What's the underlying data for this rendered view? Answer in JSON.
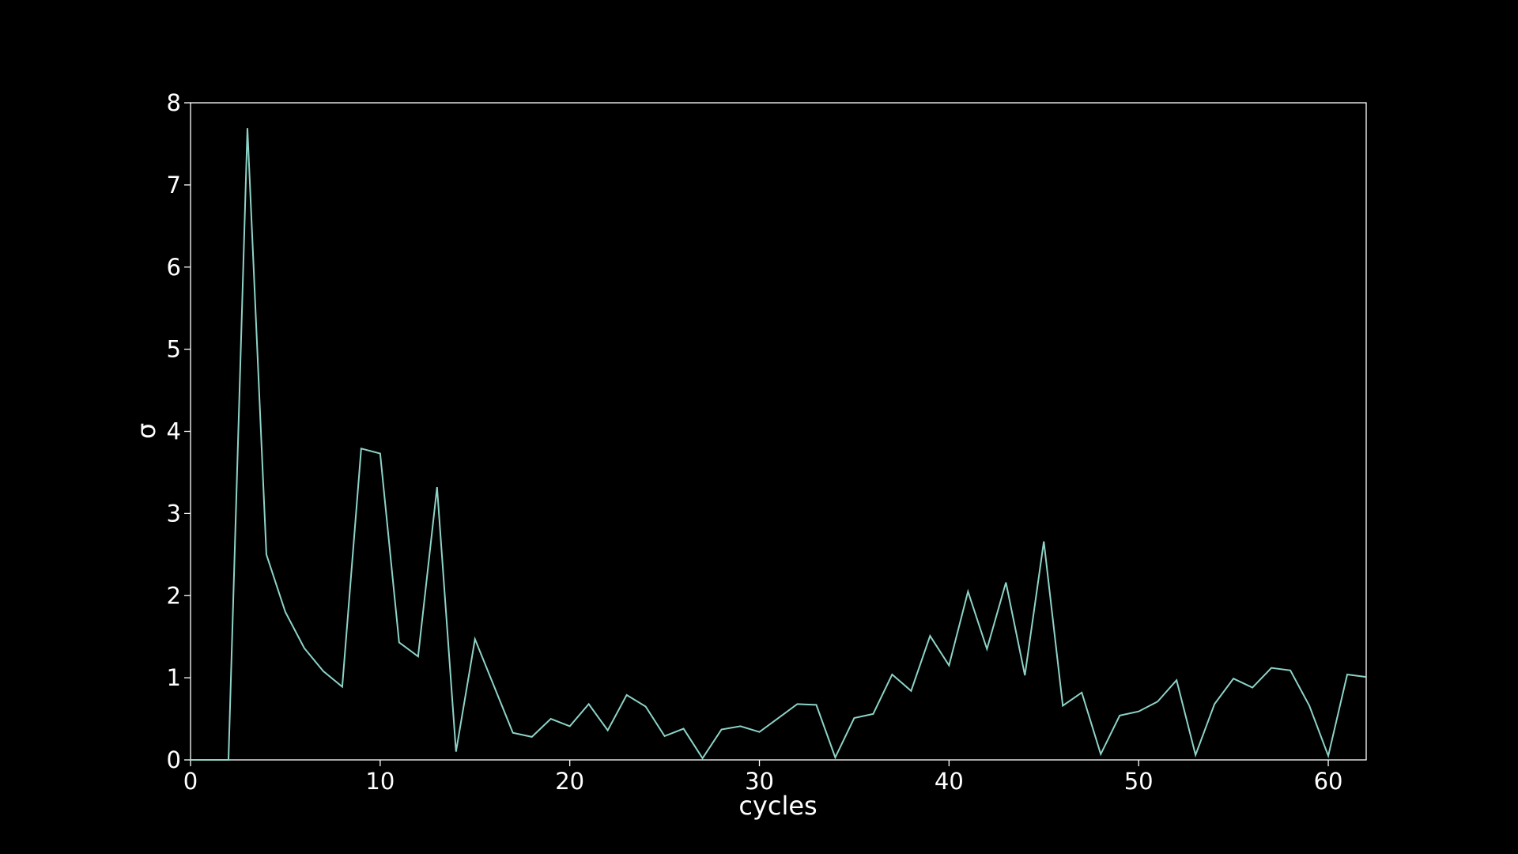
{
  "chart_data": {
    "type": "line",
    "title": "",
    "xlabel": "cycles",
    "ylabel": "σ",
    "xlim": [
      0,
      62
    ],
    "ylim": [
      0,
      8
    ],
    "xticks": [
      0,
      10,
      20,
      30,
      40,
      50,
      60
    ],
    "yticks": [
      0,
      1,
      2,
      3,
      4,
      5,
      6,
      7,
      8
    ],
    "grid": false,
    "legend": "none",
    "colors": {
      "background": "#000000",
      "axes": "#ffffff",
      "text": "#ffffff",
      "series": "#8dd3c7"
    },
    "series": [
      {
        "x": [
          0,
          1,
          2,
          3,
          4,
          5,
          6,
          7,
          8,
          9,
          10,
          11,
          12,
          13,
          14,
          15,
          16,
          17,
          18,
          19,
          20,
          21,
          22,
          23,
          24,
          25,
          26,
          27,
          28,
          29,
          30,
          31,
          32,
          33,
          34,
          35,
          36,
          37,
          38,
          39,
          40,
          41,
          42,
          43,
          44,
          45,
          46,
          47,
          48,
          49,
          50,
          51,
          52,
          53,
          54,
          55,
          56,
          57,
          58,
          59,
          60,
          61,
          62
        ],
        "values": [
          0,
          0,
          0,
          7.69,
          2.5,
          1.8,
          1.36,
          1.08,
          0.89,
          3.79,
          3.73,
          1.43,
          1.26,
          3.32,
          0.1,
          1.47,
          0.9,
          0.33,
          0.28,
          0.5,
          0.41,
          0.68,
          0.36,
          0.79,
          0.65,
          0.29,
          0.38,
          0.02,
          0.37,
          0.41,
          0.34,
          0.51,
          0.68,
          0.67,
          0.03,
          0.51,
          0.56,
          1.04,
          0.84,
          1.51,
          1.15,
          2.05,
          1.35,
          2.16,
          1.03,
          2.66,
          0.66,
          0.82,
          0.07,
          0.54,
          0.59,
          0.71,
          0.97,
          0.06,
          0.68,
          0.99,
          0.88,
          1.12,
          1.09,
          0.66,
          0.05,
          1.04,
          1.01
        ]
      }
    ]
  }
}
